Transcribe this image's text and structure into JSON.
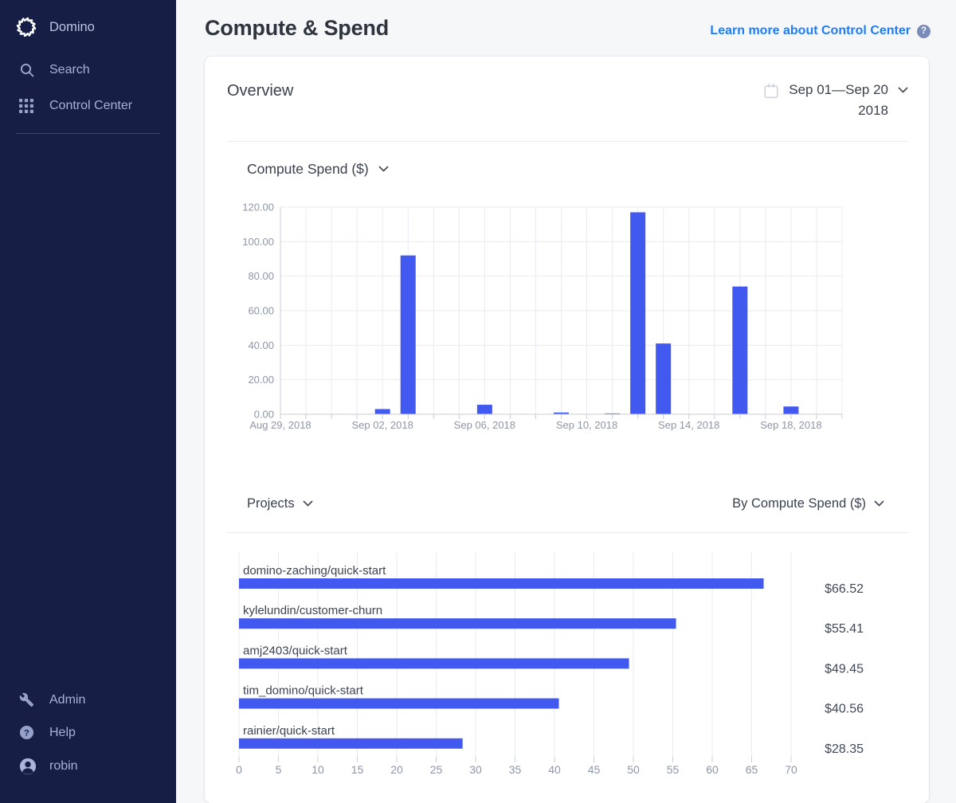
{
  "sidebar": {
    "brand": "Domino",
    "items": [
      {
        "label": "Search"
      },
      {
        "label": "Control Center"
      }
    ],
    "footer": [
      {
        "label": "Admin"
      },
      {
        "label": "Help"
      },
      {
        "label": "robin"
      }
    ],
    "help_glyph": "?"
  },
  "header": {
    "title": "Compute & Spend",
    "learn_more": "Learn more about Control Center",
    "help_badge": "?"
  },
  "overview": {
    "title": "Overview",
    "date_range": "Sep 01—Sep 20",
    "year": "2018"
  },
  "sections": {
    "compute_dropdown": "Compute Spend ($)",
    "projects_dropdown": "Projects",
    "by_dropdown": "By Compute Spend ($)"
  },
  "colors": {
    "sidebar_bg": "#171e46",
    "bar_blue": "#4159ef",
    "link_blue": "#1f7df6",
    "grid": "#e9ebef",
    "axis": "#c9cdd5",
    "tick_text": "#8d95a8"
  },
  "chart_data": [
    {
      "type": "bar",
      "title": "Compute Spend ($)",
      "categories": [
        "Aug 29, 2018",
        "Aug 30, 2018",
        "Aug 31, 2018",
        "Sep 01, 2018",
        "Sep 02, 2018",
        "Sep 03, 2018",
        "Sep 04, 2018",
        "Sep 05, 2018",
        "Sep 06, 2018",
        "Sep 07, 2018",
        "Sep 08, 2018",
        "Sep 09, 2018",
        "Sep 10, 2018",
        "Sep 11, 2018",
        "Sep 12, 2018",
        "Sep 13, 2018",
        "Sep 14, 2018",
        "Sep 15, 2018",
        "Sep 16, 2018",
        "Sep 17, 2018",
        "Sep 18, 2018",
        "Sep 19, 2018",
        "Sep 20, 2018"
      ],
      "values": [
        0,
        0,
        0,
        0,
        3,
        92,
        0,
        0,
        5.5,
        0,
        0,
        1,
        0,
        0.5,
        117,
        41,
        0,
        0,
        74,
        0,
        4.5,
        0,
        0
      ],
      "ylim": [
        0,
        120
      ],
      "yticks": [
        "0.00",
        "20.00",
        "40.00",
        "60.00",
        "80.00",
        "100.00",
        "120.00"
      ],
      "x_labeled_every": 4,
      "grid": true,
      "bar_color": "#4159ef"
    },
    {
      "type": "bar-horizontal",
      "title": "Projects by Compute Spend ($)",
      "categories": [
        "domino-zaching/quick-start",
        "kylelundin/customer-churn",
        "amj2403/quick-start",
        "tim_domino/quick-start",
        "rainier/quick-start"
      ],
      "values": [
        66.52,
        55.41,
        49.45,
        40.56,
        28.35
      ],
      "value_labels": [
        "$66.52",
        "$55.41",
        "$49.45",
        "$40.56",
        "$28.35"
      ],
      "xlim": [
        0,
        70
      ],
      "xticks": [
        0,
        5,
        10,
        15,
        20,
        25,
        30,
        35,
        40,
        45,
        50,
        55,
        60,
        65,
        70
      ],
      "grid": true,
      "bar_color": "#4159ef"
    }
  ]
}
